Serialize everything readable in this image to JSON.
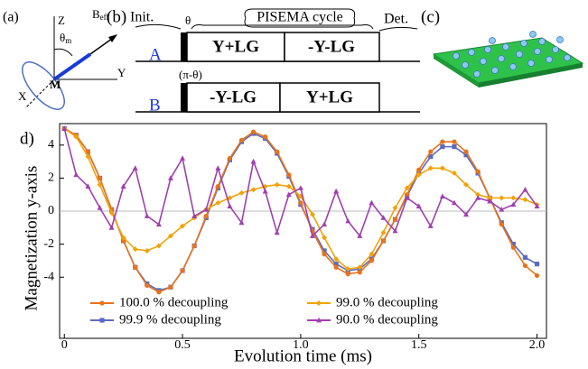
{
  "panel_a": {
    "label": "(a)",
    "z": "Z",
    "b_eff": {
      "main": "B",
      "sub": "eff"
    },
    "theta_m": {
      "main": "θ",
      "sub": "m"
    },
    "m": "M",
    "y": "Y",
    "x": "X"
  },
  "panel_b": {
    "label": "(b)",
    "init": "Init.",
    "theta": "θ",
    "cycle": "PISEMA cycle",
    "det": "Det.",
    "row_a": {
      "name": "A",
      "pulse1": "Y+LG",
      "pulse2": "-Y-LG"
    },
    "row_b": {
      "name": "B",
      "phase": "(π-θ)",
      "pulse1": "-Y-LG",
      "pulse2": "Y+LG"
    }
  },
  "panel_c": {
    "label": "(c)"
  },
  "panel_d": {
    "label": "d)"
  },
  "chart_data": {
    "type": "line",
    "x_label": "Evolution time (ms)",
    "y_label": "Magnetization y-axis",
    "x": [
      0,
      0.05,
      0.1,
      0.15,
      0.2,
      0.25,
      0.3,
      0.35,
      0.4,
      0.45,
      0.5,
      0.55,
      0.6,
      0.65,
      0.7,
      0.75,
      0.8,
      0.85,
      0.9,
      0.95,
      1.0,
      1.05,
      1.1,
      1.15,
      1.2,
      1.25,
      1.3,
      1.35,
      1.4,
      1.45,
      1.5,
      1.55,
      1.6,
      1.65,
      1.7,
      1.75,
      1.8,
      1.85,
      1.9,
      1.95,
      2.0
    ],
    "series": [
      {
        "name": "100.0 % decoupling",
        "color": "#e8731a",
        "marker": "circle",
        "values": [
          5,
          4.6,
          3.6,
          2.0,
          0.1,
          -1.8,
          -3.4,
          -4.5,
          -4.9,
          -4.6,
          -3.6,
          -2.1,
          -0.3,
          1.5,
          3.2,
          4.3,
          4.8,
          4.5,
          3.6,
          2.2,
          0.5,
          -1.2,
          -2.6,
          -3.4,
          -3.8,
          -3.7,
          -3.0,
          -1.8,
          -0.5,
          1.0,
          2.5,
          3.6,
          4.2,
          4.2,
          3.6,
          2.4,
          0.8,
          -0.8,
          -2.2,
          -3.3,
          -3.9
        ]
      },
      {
        "name": "99.0 % decoupling",
        "color": "#f0a30a",
        "marker": "diamond",
        "values": [
          5,
          4.5,
          3.3,
          1.6,
          -0.1,
          -1.6,
          -2.3,
          -2.4,
          -2.1,
          -1.5,
          -0.9,
          -0.4,
          0.1,
          0.5,
          0.8,
          1.1,
          1.3,
          1.5,
          1.6,
          1.5,
          0.9,
          -0.2,
          -1.6,
          -2.9,
          -3.5,
          -3.4,
          -2.6,
          -1.3,
          0.2,
          1.4,
          2.2,
          2.6,
          2.6,
          2.3,
          1.6,
          1.0,
          0.8,
          0.8,
          0.8,
          0.7,
          0.4
        ]
      },
      {
        "name": "99.9 % decoupling",
        "color": "#5b6bbf",
        "marker": "square",
        "values": [
          5,
          4.6,
          3.6,
          2.0,
          0.1,
          -1.8,
          -3.4,
          -4.4,
          -4.8,
          -4.6,
          -3.6,
          -2.1,
          -0.4,
          1.4,
          3.1,
          4.2,
          4.7,
          4.4,
          3.5,
          2.1,
          0.4,
          -1.1,
          -2.4,
          -3.2,
          -3.6,
          -3.5,
          -2.9,
          -1.8,
          -0.5,
          0.9,
          2.3,
          3.3,
          3.9,
          3.9,
          3.4,
          2.3,
          0.8,
          -0.7,
          -2.0,
          -2.8,
          -3.2
        ]
      },
      {
        "name": "90.0 % decoupling",
        "color": "#a040b0",
        "marker": "triangle",
        "values": [
          5,
          2.2,
          1.5,
          0.2,
          -1.0,
          1.5,
          2.6,
          -0.3,
          -0.8,
          2.0,
          3.2,
          -0.3,
          0.1,
          2.6,
          0.3,
          -0.7,
          3.0,
          1.2,
          -1.3,
          1.0,
          1.4,
          -1.5,
          -0.8,
          1.2,
          -0.6,
          -1.5,
          0.5,
          -0.4,
          -1.2,
          0.8,
          0.3,
          -0.9,
          0.9,
          0.5,
          -0.2,
          0.8,
          0.6,
          0.1,
          0.4,
          1.3,
          0.3
        ]
      }
    ],
    "xlim": [
      -0.02,
      2.04
    ],
    "ylim": [
      -7.7,
      5.3
    ],
    "xticks": [
      0,
      0.5,
      {
        "value": 1,
        "label": "1.0"
      },
      1.5,
      {
        "value": 2,
        "label": "2.0"
      }
    ],
    "yticks": [
      -4,
      -2,
      0,
      2,
      4
    ],
    "zero_line": true,
    "legend": "bottom"
  }
}
